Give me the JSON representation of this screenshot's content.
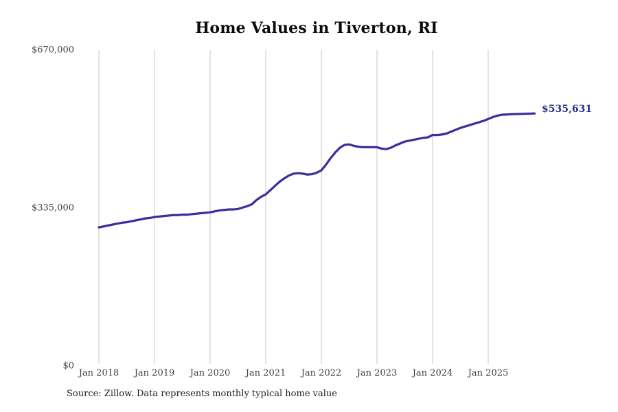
{
  "title": "Home Values in Tiverton, RI",
  "end_label": "$535,631",
  "source_note": "Source: Zillow. Data represents monthly typical home value",
  "colors": {
    "line": "#37309e",
    "end_label_text": "#2d2b86",
    "gridline": "#cccccc",
    "axis_text": "#404040",
    "title_text": "#0a0a0a",
    "source_text": "#1f1f1f",
    "background": "#ffffff"
  },
  "chart_data": {
    "type": "line",
    "title": "Home Values in Tiverton, RI",
    "xlabel": "",
    "ylabel": "",
    "ylim": [
      0,
      670000
    ],
    "grid": "vertical-yearly-gridlines",
    "legend_position": "none",
    "y_tick_labels": [
      "$0",
      "$335,000",
      "$670,000"
    ],
    "y_tick_values": [
      0,
      335000,
      670000
    ],
    "x_tick_labels": [
      "Jan 2018",
      "Jan 2019",
      "Jan 2020",
      "Jan 2021",
      "Jan 2022",
      "Jan 2023",
      "Jan 2024",
      "Jan 2025"
    ],
    "series": [
      {
        "name": "Monthly typical home value",
        "start_month": "Jan 2018",
        "end_month": "Nov 2025",
        "frequency": "monthly",
        "final_value": 535631,
        "values": [
          294000,
          296000,
          298000,
          300000,
          302000,
          304000,
          305000,
          307000,
          309000,
          311000,
          313000,
          314000,
          316000,
          317000,
          318000,
          319000,
          320000,
          320000,
          321000,
          321000,
          322000,
          323000,
          324000,
          325000,
          326000,
          328000,
          330000,
          331000,
          332000,
          332000,
          333000,
          336000,
          339000,
          343000,
          352000,
          359000,
          364000,
          373000,
          382000,
          391000,
          398000,
          404000,
          408000,
          409000,
          408000,
          406000,
          407000,
          410000,
          415000,
          427000,
          441000,
          453000,
          463000,
          469000,
          470000,
          467000,
          465000,
          464000,
          464000,
          464000,
          464000,
          461000,
          460000,
          463000,
          468000,
          472000,
          476000,
          478000,
          480000,
          482000,
          484000,
          485000,
          490000,
          490000,
          491000,
          493000,
          497000,
          501000,
          505000,
          508000,
          511000,
          514000,
          517000,
          520000,
          524000,
          528000,
          531000,
          533000,
          533500,
          534000,
          534300,
          534600,
          535000,
          535300,
          535631
        ]
      }
    ]
  }
}
